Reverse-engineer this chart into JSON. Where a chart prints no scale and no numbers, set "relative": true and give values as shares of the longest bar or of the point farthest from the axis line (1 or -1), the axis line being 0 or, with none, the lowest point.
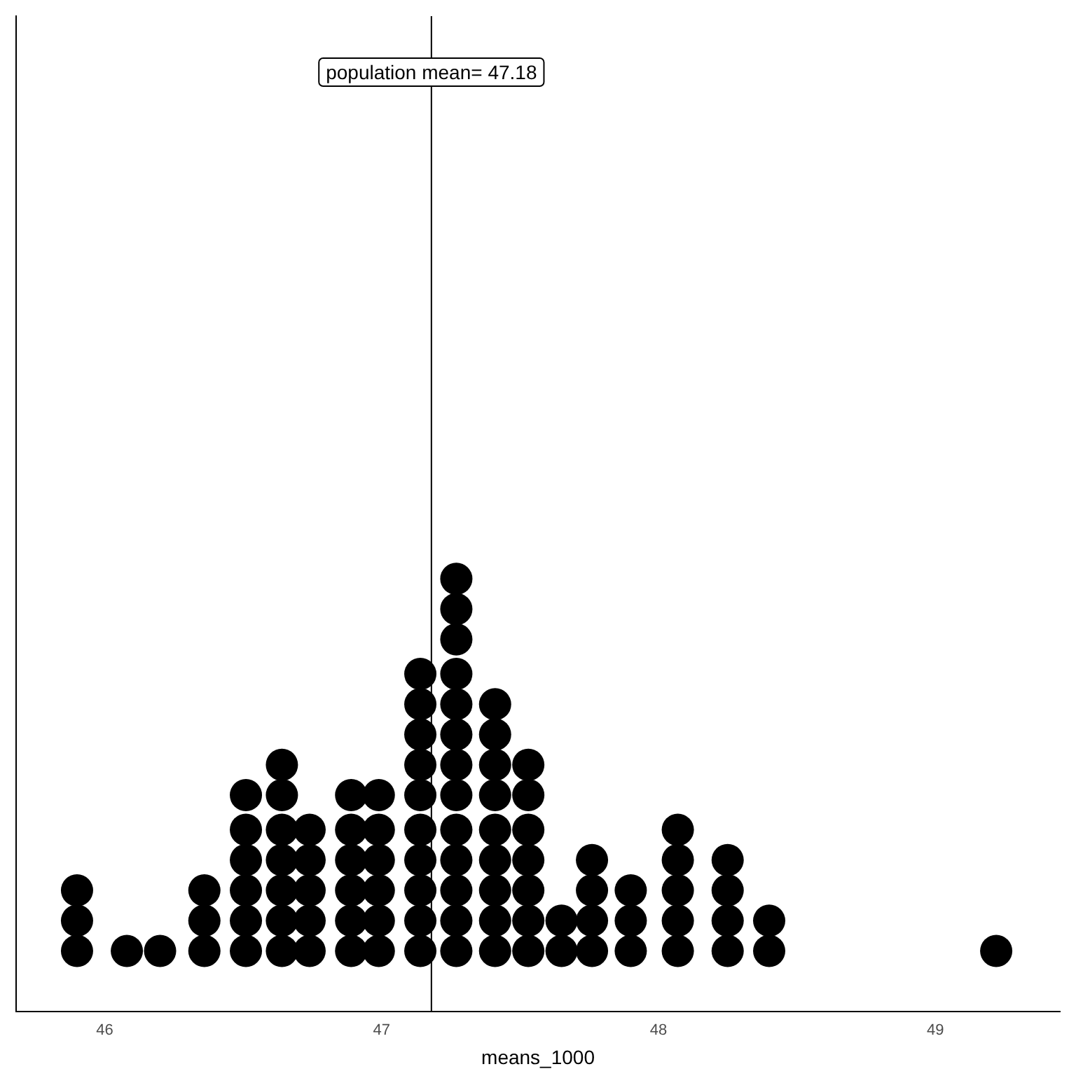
{
  "chart_data": {
    "type": "scatter",
    "xlabel": "means_1000",
    "color": "#000000",
    "marker": "circle",
    "grid": false,
    "tick_labels": "x",
    "x": [
      45.9,
      45.9,
      45.9,
      46.08,
      46.2,
      46.36,
      46.36,
      46.36,
      46.51,
      46.51,
      46.51,
      46.51,
      46.51,
      46.51,
      46.64,
      46.64,
      46.64,
      46.64,
      46.64,
      46.64,
      46.64,
      46.74,
      46.74,
      46.74,
      46.74,
      46.74,
      46.89,
      46.89,
      46.89,
      46.89,
      46.89,
      46.89,
      46.99,
      46.99,
      46.99,
      46.99,
      46.99,
      46.99,
      47.14,
      47.14,
      47.14,
      47.14,
      47.14,
      47.14,
      47.14,
      47.14,
      47.14,
      47.14,
      47.27,
      47.27,
      47.27,
      47.27,
      47.27,
      47.27,
      47.27,
      47.27,
      47.27,
      47.27,
      47.27,
      47.27,
      47.27,
      47.41,
      47.41,
      47.41,
      47.41,
      47.41,
      47.41,
      47.41,
      47.41,
      47.41,
      47.53,
      47.53,
      47.53,
      47.53,
      47.53,
      47.53,
      47.53,
      47.65,
      47.65,
      47.76,
      47.76,
      47.76,
      47.76,
      47.9,
      47.9,
      47.9,
      48.07,
      48.07,
      48.07,
      48.07,
      48.07,
      48.25,
      48.25,
      48.25,
      48.25,
      48.4,
      48.4,
      49.22
    ],
    "values": [
      0.14,
      0.21,
      0.28,
      0.14,
      0.14,
      0.14,
      0.21,
      0.28,
      0.14,
      0.21,
      0.28,
      0.35,
      0.42,
      0.5,
      0.14,
      0.21,
      0.28,
      0.35,
      0.42,
      0.5,
      0.57,
      0.14,
      0.21,
      0.28,
      0.35,
      0.42,
      0.14,
      0.21,
      0.28,
      0.35,
      0.42,
      0.5,
      0.14,
      0.21,
      0.28,
      0.35,
      0.42,
      0.5,
      0.14,
      0.21,
      0.28,
      0.35,
      0.42,
      0.5,
      0.57,
      0.64,
      0.71,
      0.78,
      0.14,
      0.21,
      0.28,
      0.35,
      0.42,
      0.5,
      0.57,
      0.64,
      0.71,
      0.78,
      0.86,
      0.93,
      1,
      0.14,
      0.21,
      0.28,
      0.35,
      0.42,
      0.5,
      0.57,
      0.64,
      0.71,
      0.14,
      0.21,
      0.28,
      0.35,
      0.42,
      0.5,
      0.57,
      0.14,
      0.21,
      0.14,
      0.21,
      0.28,
      0.35,
      0.14,
      0.21,
      0.28,
      0.14,
      0.21,
      0.28,
      0.35,
      0.42,
      0.14,
      0.21,
      0.28,
      0.35,
      0.14,
      0.21,
      0.14
    ],
    "relative": true,
    "xlim": [
      45.68,
      49.45
    ],
    "xticks": [
      46,
      47,
      48,
      49
    ],
    "ref_lines": [
      {
        "axis": "x",
        "value": 47.18,
        "label": "population mean= 47.18",
        "color": "#000000"
      }
    ]
  }
}
